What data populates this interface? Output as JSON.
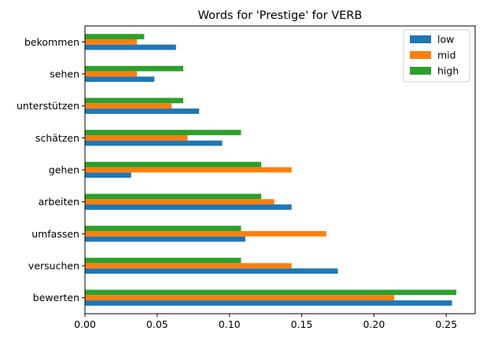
{
  "chart_data": {
    "type": "bar",
    "orientation": "horizontal",
    "title": "Words for 'Prestige' for VERB",
    "xlabel": "",
    "ylabel": "",
    "xlim": [
      0,
      0.27
    ],
    "xticks": [
      "0.00",
      "0.05",
      "0.10",
      "0.15",
      "0.20",
      "0.25"
    ],
    "categories": [
      "bewerten",
      "versuchen",
      "umfassen",
      "arbeiten",
      "gehen",
      "schätzen",
      "unterstützen",
      "sehen",
      "bekommen"
    ],
    "series": [
      {
        "name": "low",
        "color": "#1f77b4",
        "values": [
          0.254,
          0.175,
          0.111,
          0.143,
          0.032,
          0.095,
          0.079,
          0.048,
          0.063
        ]
      },
      {
        "name": "mid",
        "color": "#ff7f0e",
        "values": [
          0.214,
          0.143,
          0.167,
          0.131,
          0.143,
          0.071,
          0.06,
          0.036,
          0.036
        ]
      },
      {
        "name": "high",
        "color": "#2ca02c",
        "values": [
          0.257,
          0.108,
          0.108,
          0.122,
          0.122,
          0.108,
          0.068,
          0.068,
          0.041
        ]
      }
    ],
    "grid": false,
    "legend_position": "top-right"
  }
}
